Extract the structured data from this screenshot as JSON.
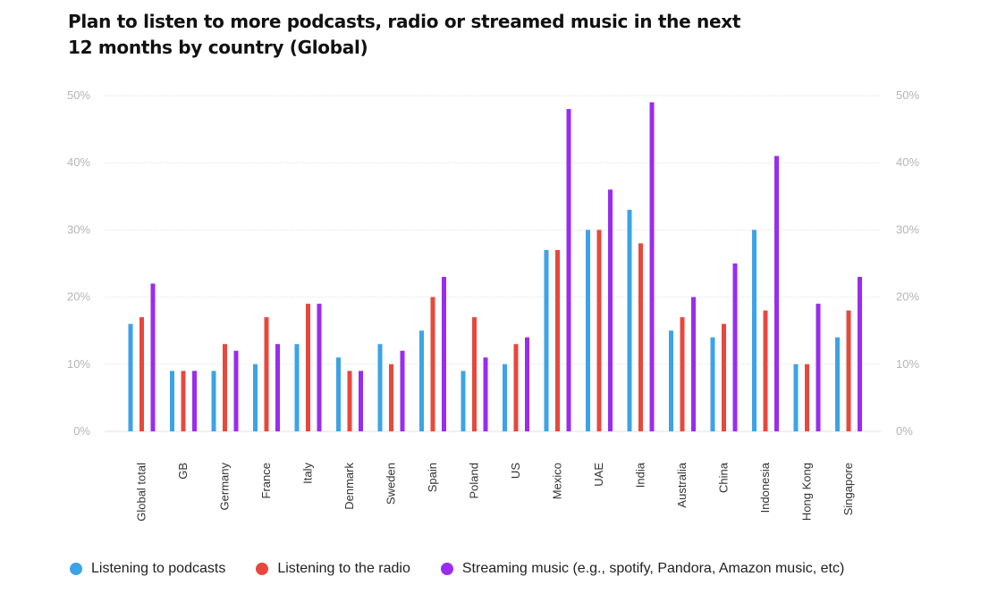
{
  "title_line1": "Plan to listen to more podcasts, radio or streamed music in the next",
  "title_line2": "12 months by country (Global)",
  "chart_data": {
    "type": "bar",
    "title": "Plan to listen to more podcasts, radio or streamed music in the next 12 months by country (Global)",
    "categories": [
      "Global total",
      "GB",
      "Germany",
      "France",
      "Italy",
      "Denmark",
      "Sweden",
      "Spain",
      "Poland",
      "US",
      "Mexico",
      "UAE",
      "India",
      "Australia",
      "China",
      "Indonesia",
      "Hong Kong",
      "Singapore"
    ],
    "series": [
      {
        "name": "Listening to podcasts",
        "color": "#3ca3e8",
        "values": [
          16,
          9,
          9,
          10,
          13,
          11,
          13,
          15,
          9,
          10,
          27,
          30,
          33,
          15,
          14,
          30,
          10,
          14
        ]
      },
      {
        "name": "Listening to the radio",
        "color": "#e8483c",
        "values": [
          17,
          9,
          13,
          17,
          19,
          9,
          10,
          20,
          17,
          13,
          27,
          30,
          28,
          17,
          16,
          18,
          10,
          18
        ]
      },
      {
        "name": "Streaming music (e.g., spotify, Pandora, Amazon music, etc)",
        "color": "#9a2cf0",
        "values": [
          22,
          9,
          12,
          13,
          19,
          9,
          12,
          23,
          11,
          14,
          48,
          36,
          49,
          20,
          25,
          41,
          19,
          23
        ]
      }
    ],
    "ylim": [
      0,
      50
    ],
    "yticks": [
      "0%",
      "10%",
      "20%",
      "30%",
      "40%",
      "50%"
    ],
    "xlabel": "",
    "ylabel": "",
    "grid": true,
    "legend_position": "bottom-left"
  }
}
